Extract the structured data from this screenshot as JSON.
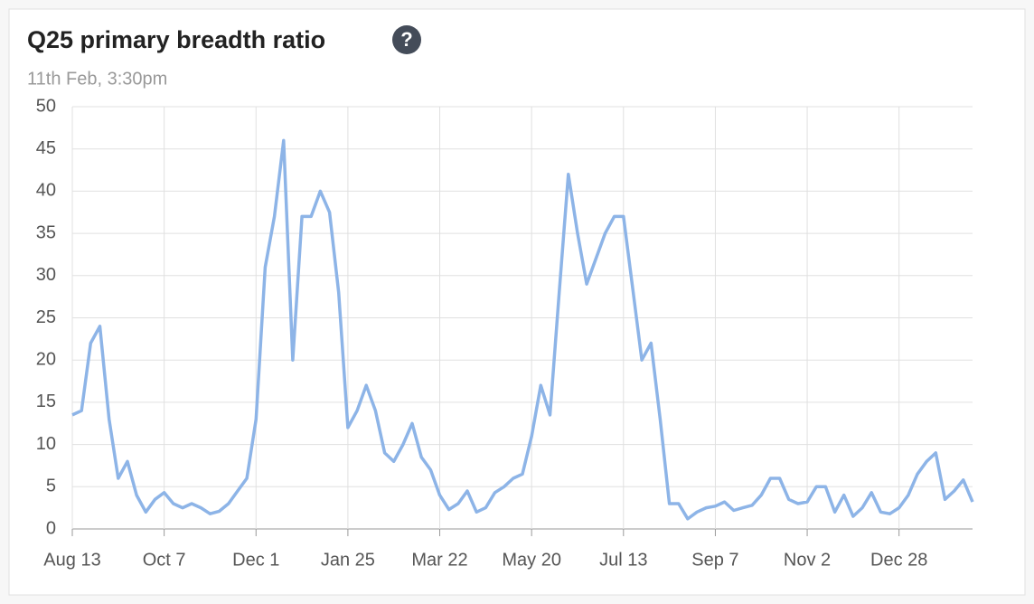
{
  "chart_data": {
    "type": "line",
    "title": "Q25 primary breadth ratio",
    "help_icon": "?",
    "subtitle": "11th Feb, 3:30pm",
    "categories": [
      "Aug 13",
      null,
      null,
      null,
      null,
      null,
      null,
      null,
      null,
      null,
      "Oct 7",
      null,
      null,
      null,
      null,
      null,
      null,
      null,
      null,
      null,
      "Dec 1",
      null,
      null,
      null,
      null,
      null,
      null,
      null,
      null,
      null,
      "Jan 25",
      null,
      null,
      null,
      null,
      null,
      null,
      null,
      null,
      null,
      "Mar 22",
      null,
      null,
      null,
      null,
      null,
      null,
      null,
      null,
      null,
      "May 20",
      null,
      null,
      null,
      null,
      null,
      null,
      null,
      null,
      null,
      "Jul 13",
      null,
      null,
      null,
      null,
      null,
      null,
      null,
      null,
      null,
      "Sep 7",
      null,
      null,
      null,
      null,
      null,
      null,
      null,
      null,
      null,
      "Nov 2",
      null,
      null,
      null,
      null,
      null,
      null,
      null,
      null,
      null,
      "Dec 28",
      null,
      null,
      null,
      null,
      null,
      null,
      null,
      null
    ],
    "series": [
      {
        "name": "Q25 primary breadth ratio",
        "color": "#8db4e7",
        "values": [
          13.5,
          14,
          22,
          24,
          13,
          6,
          8,
          4,
          2,
          3.5,
          4.3,
          3,
          2.5,
          3,
          2.5,
          1.8,
          2.1,
          3,
          4.5,
          6,
          13,
          31,
          37,
          46,
          20,
          37,
          37,
          40,
          37.5,
          28,
          12,
          14,
          17,
          14,
          9,
          8,
          10,
          12.5,
          8.5,
          7,
          4,
          2.3,
          3,
          4.5,
          2,
          2.5,
          4.3,
          5,
          6,
          6.5,
          11,
          17,
          13.5,
          28,
          42,
          35,
          29,
          32,
          35,
          37,
          37,
          28.5,
          20,
          22,
          13,
          3,
          3,
          1.2,
          2,
          2.5,
          2.7,
          3.2,
          2.2,
          2.5,
          2.8,
          4,
          6,
          6,
          3.5,
          3,
          3.2,
          5,
          5,
          2,
          4,
          1.5,
          2.5,
          4.3,
          2,
          1.8,
          2.5,
          4,
          6.5,
          8,
          9,
          3.5,
          4.5,
          5.8,
          3.2
        ]
      }
    ],
    "ylim": [
      0,
      50
    ],
    "yticks": [
      0,
      5,
      10,
      15,
      20,
      25,
      30,
      35,
      40,
      45,
      50
    ],
    "grid": true
  }
}
